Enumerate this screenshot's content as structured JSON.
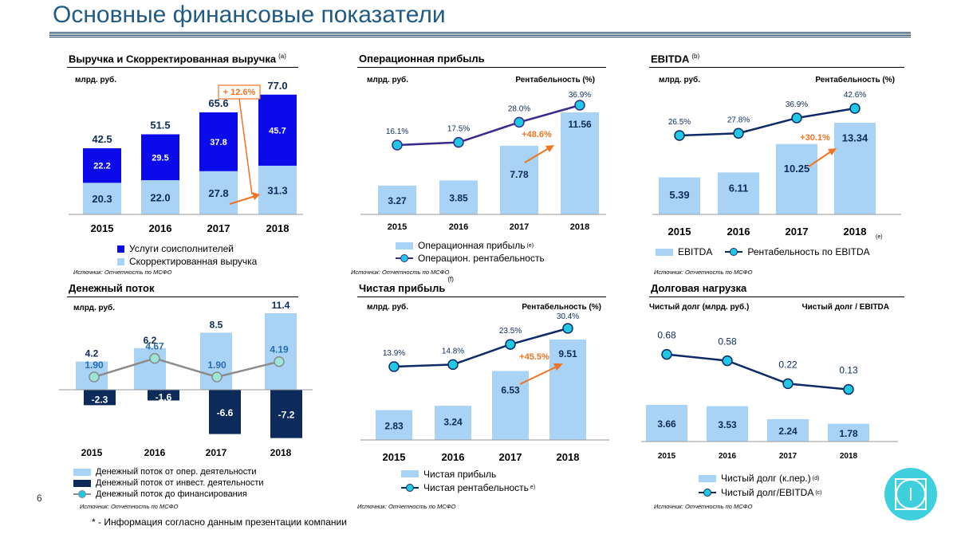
{
  "page": {
    "title": "Основные финансовые показатели",
    "page_number": "6",
    "footnote": "* - Информация согласно данным презентации компании",
    "source": "Источник: Отчетность по МСФО"
  },
  "colors": {
    "title": "#1f5b86",
    "light_bar": "#a9d3f5",
    "dark_bar": "#0b0bea",
    "navy": "#0c2b5a",
    "line_purple": "#3b2a8c",
    "line_navy": "#0d2a66",
    "marker": "#1fc8e3",
    "arrow": "#f07421",
    "gray_line": "#8c8c8c"
  },
  "panels": {
    "revenue": {
      "title": "Выручка и Скорректированная выручка",
      "note": "(a)",
      "unit": "млрд. руб.",
      "growth_label": "+ 12.6%",
      "legend": [
        "Услуги соисполнителей",
        "Скорректированная выручка"
      ]
    },
    "op_profit": {
      "title": "Операционная прибыль",
      "unit": "млрд. руб.",
      "unit_right": "Рентабельность (%)",
      "growth_label": "+48.6%",
      "legend": [
        "Операционная прибыль",
        "Операцион. рентабельность"
      ],
      "legend_note": "(e)"
    },
    "ebitda": {
      "title": "EBITDA",
      "note": "(b)",
      "unit": "млрд. руб.",
      "unit_right": "Рентабельность (%)",
      "growth_label": "+30.1%",
      "axis_note": "(e)",
      "legend": [
        "EBITDA",
        "Рентабельность по EBITDA"
      ]
    },
    "cashflow": {
      "title": "Денежный поток",
      "unit": "млрд. руб.",
      "legend": [
        "Денежный поток от опер. деятельности",
        "Денежный поток от инвест. деятельности",
        "Денежный поток до финансирования"
      ]
    },
    "net_profit": {
      "title": "Чистая прибыль",
      "note": "(f)",
      "unit": "млрд. руб.",
      "unit_right": "Рентабельность (%)",
      "growth_label": "+45.5%",
      "legend": [
        "Чистая прибыль",
        "Чистая рентабельность"
      ],
      "legend_note": "e)"
    },
    "debt": {
      "title": "Долговая нагрузка",
      "unit": "Чистый долг (млрд. руб.)",
      "unit_right": "Чистый долг / EBITDA",
      "legend": [
        "Чистый долг (к.пер.)",
        "Чистый долг/EBITDA"
      ],
      "legend_notes": [
        "(d)",
        "(c)"
      ]
    }
  },
  "chart_data": [
    {
      "id": "revenue",
      "type": "bar",
      "stacked": true,
      "categories": [
        "2015",
        "2016",
        "2017",
        "2018"
      ],
      "series": [
        {
          "name": "Скорректированная выручка",
          "values": [
            20.3,
            22.0,
            27.8,
            31.3
          ]
        },
        {
          "name": "Услуги соисполнителей",
          "values": [
            22.2,
            29.5,
            37.8,
            45.7
          ]
        }
      ],
      "totals": [
        42.5,
        51.5,
        65.6,
        77.0
      ],
      "total_labels": [
        "42.5",
        "51.5",
        "65.6",
        "77.0"
      ],
      "value_labels": [
        [
          "20.3",
          "22.0",
          "27.8",
          "31.3"
        ],
        [
          "22.2",
          "29.5",
          "37.8",
          "45.7"
        ]
      ],
      "ylim": [
        0,
        82
      ]
    },
    {
      "id": "op_profit",
      "type": "bar",
      "categories": [
        "2015",
        "2016",
        "2017",
        "2018"
      ],
      "series": [
        {
          "name": "Операционная прибыль",
          "values": [
            3.27,
            3.85,
            7.78,
            11.56
          ]
        },
        {
          "name": "Операцион. рентабельность",
          "type": "line",
          "values": [
            16.1,
            17.5,
            28.0,
            36.9
          ]
        }
      ],
      "bar_labels": [
        "3.27",
        "3.85",
        "7.78",
        "11.56"
      ],
      "line_labels": [
        "16.1%",
        "17.5%",
        "28.0%",
        "36.9%"
      ]
    },
    {
      "id": "ebitda",
      "type": "bar",
      "categories": [
        "2015",
        "2016",
        "2017",
        "2018"
      ],
      "series": [
        {
          "name": "EBITDA",
          "values": [
            5.39,
            6.11,
            10.25,
            13.34
          ]
        },
        {
          "name": "Рентабельность по EBITDA",
          "type": "line",
          "values": [
            26.5,
            27.8,
            36.9,
            42.6
          ]
        }
      ],
      "bar_labels": [
        "5.39",
        "6.11",
        "10.25",
        "13.34"
      ],
      "line_labels": [
        "26.5%",
        "27.8%",
        "36.9%",
        "42.6%"
      ]
    },
    {
      "id": "cashflow",
      "type": "bar",
      "categories": [
        "2015",
        "2016",
        "2017",
        "2018"
      ],
      "series": [
        {
          "name": "Денежный поток от опер. деятельности",
          "values": [
            4.2,
            6.2,
            8.5,
            11.4
          ]
        },
        {
          "name": "Денежный поток от инвест. деятельности",
          "values": [
            -2.3,
            -1.6,
            -6.6,
            -7.2
          ]
        },
        {
          "name": "Денежный поток до финансирования",
          "type": "line",
          "values": [
            1.9,
            4.67,
            1.9,
            4.19
          ]
        }
      ],
      "op_labels": [
        "4.2",
        "6.2",
        "8.5",
        "11.4"
      ],
      "inv_labels": [
        "-2.3",
        "-1.6",
        "-6.6",
        "-7.2"
      ],
      "line_labels": [
        "1.90",
        "4.67",
        "1.90",
        "4.19"
      ]
    },
    {
      "id": "net_profit",
      "type": "bar",
      "categories": [
        "2015",
        "2016",
        "2017",
        "2018"
      ],
      "series": [
        {
          "name": "Чистая прибыль",
          "values": [
            2.83,
            3.24,
            6.53,
            9.51
          ]
        },
        {
          "name": "Чистая рентабельность",
          "type": "line",
          "values": [
            13.9,
            14.8,
            23.5,
            30.4
          ]
        }
      ],
      "bar_labels": [
        "2.83",
        "3.24",
        "6.53",
        "9.51"
      ],
      "line_labels": [
        "13.9%",
        "14.8%",
        "23.5%",
        "30.4%"
      ]
    },
    {
      "id": "debt",
      "type": "bar",
      "categories": [
        "2015",
        "2016",
        "2017",
        "2018"
      ],
      "series": [
        {
          "name": "Чистый долг (к.пер.)",
          "values": [
            3.66,
            3.53,
            2.24,
            1.78
          ]
        },
        {
          "name": "Чистый долг/EBITDA",
          "type": "line",
          "values": [
            0.68,
            0.58,
            0.22,
            0.13
          ]
        }
      ],
      "bar_labels": [
        "3.66",
        "3.53",
        "2.24",
        "1.78"
      ],
      "line_labels": [
        "0.68",
        "0.58",
        "0.22",
        "0.13"
      ]
    }
  ]
}
